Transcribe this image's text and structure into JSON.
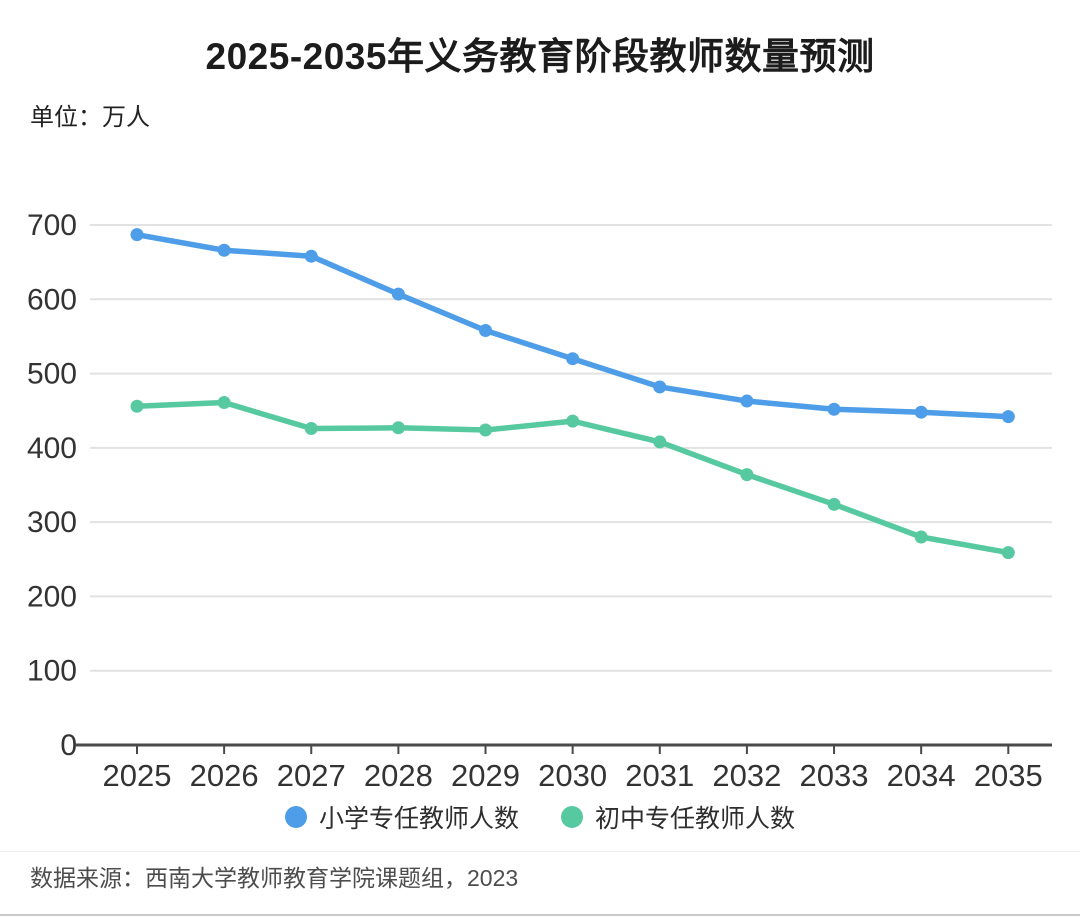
{
  "title": "2025-2035年义务教育阶段教师数量预测",
  "unit_label": "单位：万人",
  "source": "数据来源：西南大学教师教育学院课题组，2023",
  "colors": {
    "series_primary": "#4d9de8",
    "series_secondary": "#57c9a0",
    "grid": "#e2e2e2",
    "axis": "#4a4a4a",
    "tick_text": "#333333",
    "title_text": "#1c1c1c",
    "source_text": "#4d4d4d"
  },
  "chart_data": {
    "type": "line",
    "x": [
      2025,
      2026,
      2027,
      2028,
      2029,
      2030,
      2031,
      2032,
      2033,
      2034,
      2035
    ],
    "series": [
      {
        "name": "小学专任教师人数",
        "color": "#4d9de8",
        "values": [
          687,
          666,
          658,
          607,
          558,
          520,
          482,
          463,
          452,
          448,
          442
        ]
      },
      {
        "name": "初中专任教师人数",
        "color": "#57c9a0",
        "values": [
          456,
          461,
          426,
          427,
          424,
          436,
          408,
          364,
          324,
          280,
          259
        ]
      }
    ],
    "title": "2025-2035年义务教育阶段教师数量预测",
    "xlabel": "",
    "ylabel": "单位：万人",
    "ylim": [
      0,
      700
    ],
    "yticks": [
      0,
      100,
      200,
      300,
      400,
      500,
      600,
      700
    ],
    "grid": true,
    "legend_position": "bottom",
    "markers": true
  }
}
